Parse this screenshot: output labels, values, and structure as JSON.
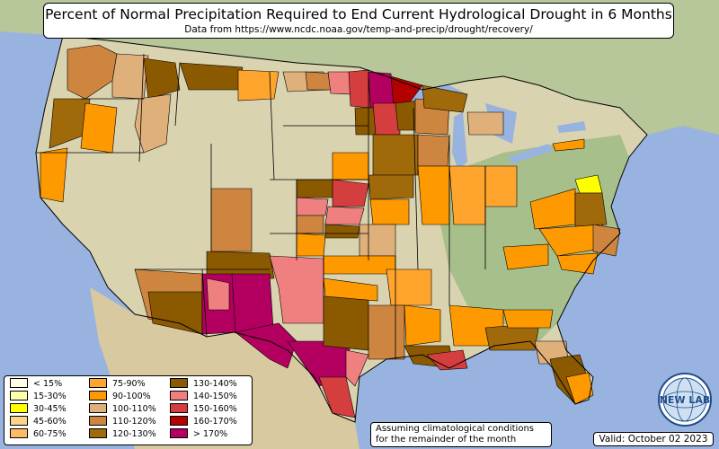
{
  "title": "Percent of Normal Precipitation Required to End Current Hydrological Drought in 6 Months",
  "subtitle": "Data from https://www.ncdc.noaa.gov/temp-and-precip/drought/recovery/",
  "legend": [
    {
      "label": "< 15%",
      "color": "#fffde6"
    },
    {
      "label": "15-30%",
      "color": "#ffffaa"
    },
    {
      "label": "30-45%",
      "color": "#ffff00"
    },
    {
      "label": "45-60%",
      "color": "#fdd28a"
    },
    {
      "label": "60-75%",
      "color": "#fdbb63"
    },
    {
      "label": "75-90%",
      "color": "#ffa52d"
    },
    {
      "label": "90-100%",
      "color": "#ff9900"
    },
    {
      "label": "100-110%",
      "color": "#dfb07a"
    },
    {
      "label": "110-120%",
      "color": "#cd853f"
    },
    {
      "label": "120-130%",
      "color": "#a0690a"
    },
    {
      "label": "130-140%",
      "color": "#8b5a00"
    },
    {
      "label": "140-150%",
      "color": "#f08080"
    },
    {
      "label": "150-160%",
      "color": "#d53e3e"
    },
    {
      "label": "160-170%",
      "color": "#b30000"
    },
    {
      "label": "> 170%",
      "color": "#b30060"
    }
  ],
  "note": {
    "line1": "Assuming climatological conditions",
    "line2": "for the remainder of the month"
  },
  "valid": "Valid: October 02 2023",
  "logo": {
    "text": "NEW LAB",
    "icon": "globe-logo-icon"
  },
  "colors": {
    "ocean": "#99b3e0",
    "land": "#d9d3b0",
    "forest": "#8fb07a",
    "border": "#000000"
  }
}
